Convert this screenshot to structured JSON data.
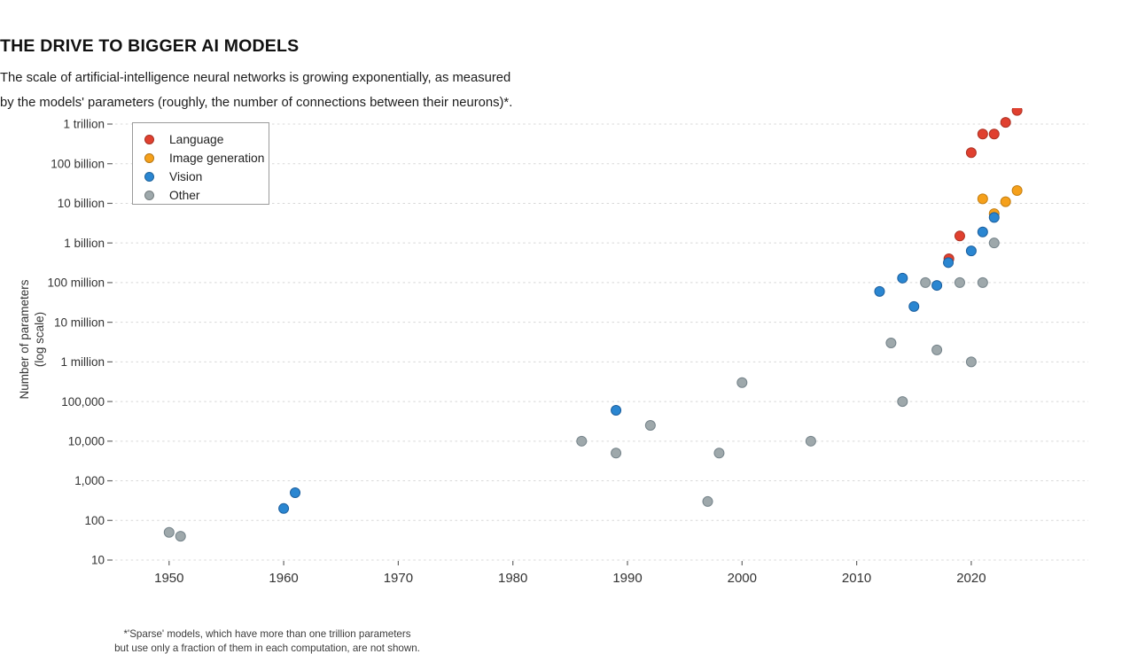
{
  "header": {
    "title": "THE DRIVE TO BIGGER AI MODELS",
    "subtitle_line1": "The scale of artificial-intelligence neural networks is growing exponentially, as measured",
    "subtitle_line2": "by the models' parameters (roughly, the number of connections between their neurons)*."
  },
  "footnote": {
    "line1": "*'Sparse' models, which have more than one trillion parameters",
    "line2": "but use only a fraction of them in each computation, are not shown."
  },
  "chart_data": {
    "type": "scatter",
    "title": "THE DRIVE TO BIGGER AI MODELS",
    "xlabel": "",
    "ylabel_line1": "Number of parameters",
    "ylabel_line2": "(log scale)",
    "y_scale": "log",
    "grid": "horizontal dashed",
    "legend_position": "top-left",
    "x_domain": [
      1945,
      2030
    ],
    "y_domain": [
      10,
      2500000000000
    ],
    "x_ticks": [
      1950,
      1960,
      1970,
      1980,
      1990,
      2000,
      2010,
      2020
    ],
    "y_ticks": [
      {
        "value": 1000000000000.0,
        "label": "1 trillion"
      },
      {
        "value": 100000000000.0,
        "label": "100 billion"
      },
      {
        "value": 10000000000.0,
        "label": "10 billion"
      },
      {
        "value": 1000000000.0,
        "label": "1 billion"
      },
      {
        "value": 100000000.0,
        "label": "100 million"
      },
      {
        "value": 10000000.0,
        "label": "10 million"
      },
      {
        "value": 1000000.0,
        "label": "1 million"
      },
      {
        "value": 100000.0,
        "label": "100,000"
      },
      {
        "value": 10000.0,
        "label": "10,000"
      },
      {
        "value": 1000.0,
        "label": "1,000"
      },
      {
        "value": 100.0,
        "label": "100"
      },
      {
        "value": 10.0,
        "label": "10"
      }
    ],
    "series": [
      {
        "name": "Language",
        "color": "#e0402f",
        "stroke": "#ad3224",
        "points": [
          {
            "year": 2018.05,
            "params": 400000000.0
          },
          {
            "year": 2019,
            "params": 1500000000.0
          },
          {
            "year": 2020,
            "params": 190000000000.0
          },
          {
            "year": 2021,
            "params": 560000000000.0
          },
          {
            "year": 2022,
            "params": 560000000000.0
          },
          {
            "year": 2023,
            "params": 1100000000000.0
          },
          {
            "year": 2024,
            "params": 2200000000000.0
          }
        ]
      },
      {
        "name": "Image generation",
        "color": "#f5a01b",
        "stroke": "#c57f12",
        "points": [
          {
            "year": 2021,
            "params": 13000000000.0
          },
          {
            "year": 2022,
            "params": 5500000000.0
          },
          {
            "year": 2023,
            "params": 11000000000.0
          },
          {
            "year": 2024,
            "params": 21000000000.0
          }
        ]
      },
      {
        "name": "Vision",
        "color": "#2a86d1",
        "stroke": "#1c5f9e",
        "points": [
          {
            "year": 1960,
            "params": 200
          },
          {
            "year": 1961,
            "params": 500
          },
          {
            "year": 1989,
            "params": 60000.0
          },
          {
            "year": 2012,
            "params": 60000000.0
          },
          {
            "year": 2014,
            "params": 130000000.0
          },
          {
            "year": 2015,
            "params": 25000000.0
          },
          {
            "year": 2017,
            "params": 85000000.0
          },
          {
            "year": 2018,
            "params": 320000000.0
          },
          {
            "year": 2020,
            "params": 630000000.0
          },
          {
            "year": 2021,
            "params": 1900000000.0
          },
          {
            "year": 2022,
            "params": 4400000000.0
          }
        ]
      },
      {
        "name": "Other",
        "color": "#9ea8ab",
        "stroke": "#75838a",
        "points": [
          {
            "year": 1950,
            "params": 50
          },
          {
            "year": 1951,
            "params": 40
          },
          {
            "year": 1986,
            "params": 10000.0
          },
          {
            "year": 1989,
            "params": 5000.0
          },
          {
            "year": 1992,
            "params": 25000.0
          },
          {
            "year": 1997,
            "params": 300
          },
          {
            "year": 1998,
            "params": 5000.0
          },
          {
            "year": 2000,
            "params": 300000.0
          },
          {
            "year": 2006,
            "params": 10000.0
          },
          {
            "year": 2013,
            "params": 3000000.0
          },
          {
            "year": 2014,
            "params": 100000.0
          },
          {
            "year": 2016,
            "params": 100000000.0
          },
          {
            "year": 2017,
            "params": 2000000.0
          },
          {
            "year": 2019,
            "params": 100000000.0
          },
          {
            "year": 2020,
            "params": 1000000.0
          },
          {
            "year": 2021,
            "params": 100000000.0
          },
          {
            "year": 2022,
            "params": 1000000000.0
          }
        ]
      }
    ],
    "draw_order": [
      "Language",
      "Image generation",
      "Other",
      "Vision"
    ]
  }
}
